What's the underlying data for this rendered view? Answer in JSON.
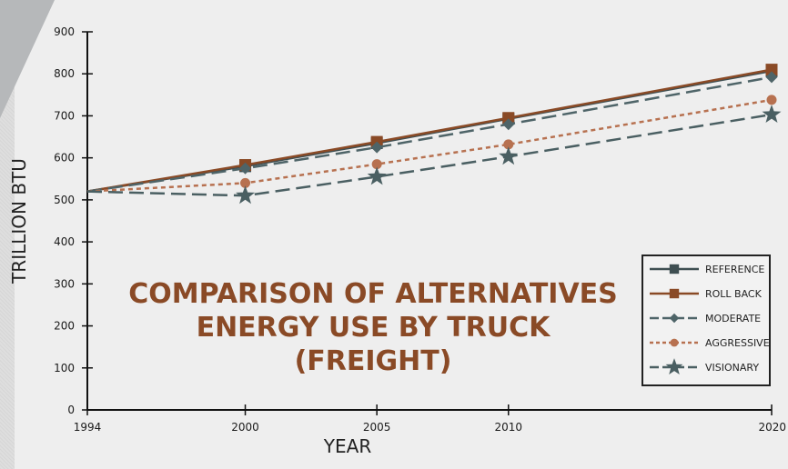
{
  "chart_data": {
    "type": "line",
    "title_lines": [
      "COMPARISON OF ALTERNATIVES",
      "ENERGY USE BY TRUCK",
      "(FREIGHT)"
    ],
    "xlabel": "YEAR",
    "ylabel": "TRILLION BTU",
    "x": [
      1994,
      2000,
      2005,
      2010,
      2020
    ],
    "x_tick_labels": [
      "1994",
      "2000",
      "2005",
      "2010",
      "2020"
    ],
    "y_ticks": [
      0,
      100,
      200,
      300,
      400,
      500,
      600,
      700,
      800,
      900
    ],
    "y_tick_labels": [
      "0",
      "100",
      "200",
      "300",
      "400",
      "500",
      "600",
      "700",
      "800",
      "900"
    ],
    "ylim": [
      0,
      900
    ],
    "grid": false,
    "legend_position": "right",
    "series": [
      {
        "name": "REFERENCE",
        "values": [
          520,
          580,
          635,
          693,
          807
        ],
        "color": "#3f4f52",
        "dash": "solid",
        "marker": "square"
      },
      {
        "name": "ROLL BACK",
        "values": [
          520,
          583,
          638,
          695,
          810
        ],
        "color": "#8a4a26",
        "dash": "solid",
        "marker": "square"
      },
      {
        "name": "MODERATE",
        "values": [
          520,
          575,
          625,
          680,
          792
        ],
        "color": "#4e6468",
        "dash": "longdash",
        "marker": "diamond"
      },
      {
        "name": "AGGRESSIVE",
        "values": [
          520,
          540,
          585,
          632,
          738
        ],
        "color": "#b77150",
        "dash": "dash",
        "marker": "circle"
      },
      {
        "name": "VISIONARY",
        "values": [
          520,
          510,
          555,
          603,
          703
        ],
        "color": "#4a5f62",
        "dash": "longdash",
        "marker": "star"
      }
    ]
  }
}
